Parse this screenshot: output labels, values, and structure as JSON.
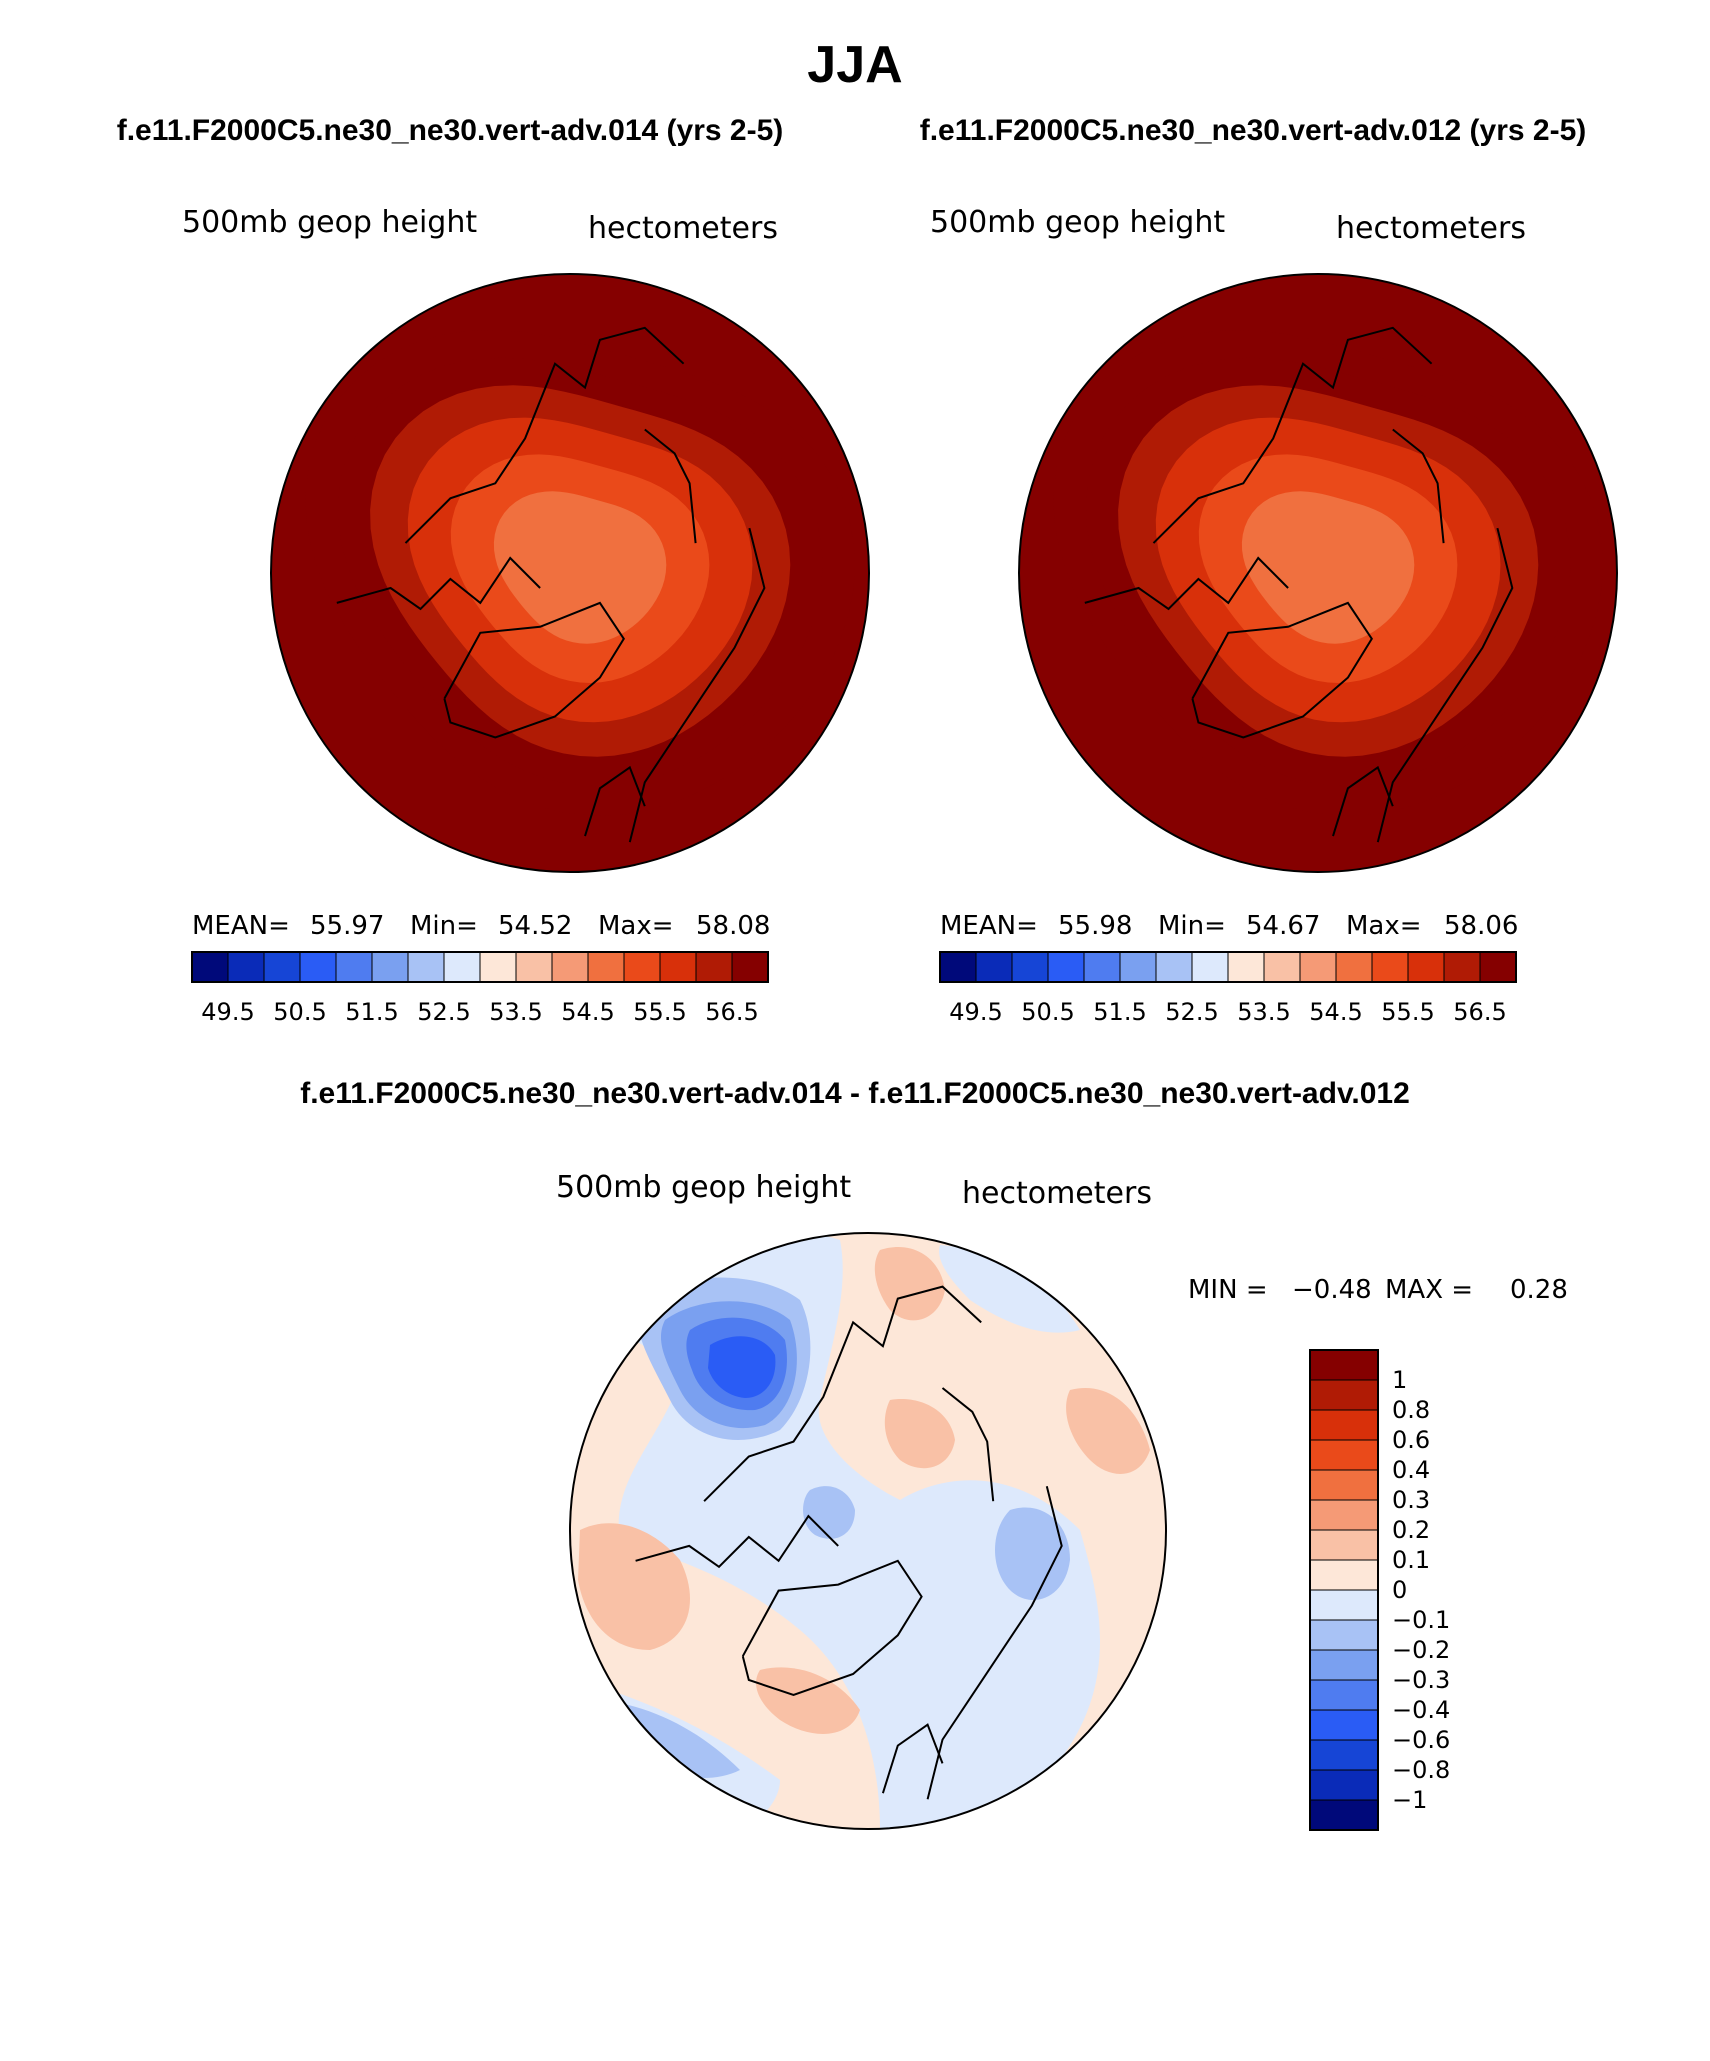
{
  "figure": {
    "season": "JJA",
    "case_top_left": "f.e11.F2000C5.ne30_ne30.vert-adv.014 (yrs 2-5)",
    "case_top_right": "f.e11.F2000C5.ne30_ne30.vert-adv.012 (yrs 2-5)",
    "diff_title": "f.e11.F2000C5.ne30_ne30.vert-adv.014 - f.e11.F2000C5.ne30_ne30.vert-adv.012"
  },
  "chart_data": [
    {
      "type": "heatmap",
      "projection": "north polar stereographic",
      "field": "500mb geop height",
      "units": "hectometers",
      "stats": {
        "mean_label": "MEAN=",
        "mean": "55.97",
        "min_label": "Min=",
        "min": "54.52",
        "max_label": "Max=",
        "max": "58.08"
      },
      "colorbar": {
        "orientation": "horizontal",
        "tick_labels": [
          "49.5",
          "50.5",
          "51.5",
          "52.5",
          "53.5",
          "54.5",
          "55.5",
          "56.5"
        ],
        "colors": [
          "#00097a",
          "#0a2bb8",
          "#1645d6",
          "#2a5cf5",
          "#4f7cf0",
          "#7aa0f0",
          "#a8c2f5",
          "#dde9fc",
          "#fde7d8",
          "#f9c1a6",
          "#f59a76",
          "#f0703f",
          "#ea4a1a",
          "#d8300a",
          "#b01b05",
          "#850000"
        ]
      },
      "contour_levels": [
        55.0,
        55.5,
        56.0,
        56.5,
        57.0,
        57.5
      ]
    },
    {
      "type": "heatmap",
      "projection": "north polar stereographic",
      "field": "500mb geop height",
      "units": "hectometers",
      "stats": {
        "mean_label": "MEAN=",
        "mean": "55.98",
        "min_label": "Min=",
        "min": "54.67",
        "max_label": "Max=",
        "max": "58.06"
      },
      "colorbar": {
        "orientation": "horizontal",
        "tick_labels": [
          "49.5",
          "50.5",
          "51.5",
          "52.5",
          "53.5",
          "54.5",
          "55.5",
          "56.5"
        ],
        "colors": [
          "#00097a",
          "#0a2bb8",
          "#1645d6",
          "#2a5cf5",
          "#4f7cf0",
          "#7aa0f0",
          "#a8c2f5",
          "#dde9fc",
          "#fde7d8",
          "#f9c1a6",
          "#f59a76",
          "#f0703f",
          "#ea4a1a",
          "#d8300a",
          "#b01b05",
          "#850000"
        ]
      },
      "contour_levels": [
        55.0,
        55.5,
        56.0,
        56.5,
        57.0,
        57.5
      ]
    },
    {
      "type": "heatmap",
      "projection": "north polar stereographic",
      "field": "500mb geop height",
      "units": "hectometers",
      "stats": {
        "min_label": "MIN =",
        "min": "−0.48",
        "max_label": "MAX =",
        "max": "0.28"
      },
      "colorbar": {
        "orientation": "vertical",
        "tick_labels": [
          "1",
          "0.8",
          "0.6",
          "0.4",
          "0.3",
          "0.2",
          "0.1",
          "0",
          "−0.1",
          "−0.2",
          "−0.3",
          "−0.4",
          "−0.6",
          "−0.8",
          "−1"
        ],
        "colors": [
          "#850000",
          "#b01b05",
          "#d8300a",
          "#ea4a1a",
          "#f0703f",
          "#f59a76",
          "#f9c1a6",
          "#fde7d8",
          "#dde9fc",
          "#a8c2f5",
          "#7aa0f0",
          "#4f7cf0",
          "#2a5cf5",
          "#1645d6",
          "#0a2bb8",
          "#00097a"
        ]
      }
    }
  ]
}
